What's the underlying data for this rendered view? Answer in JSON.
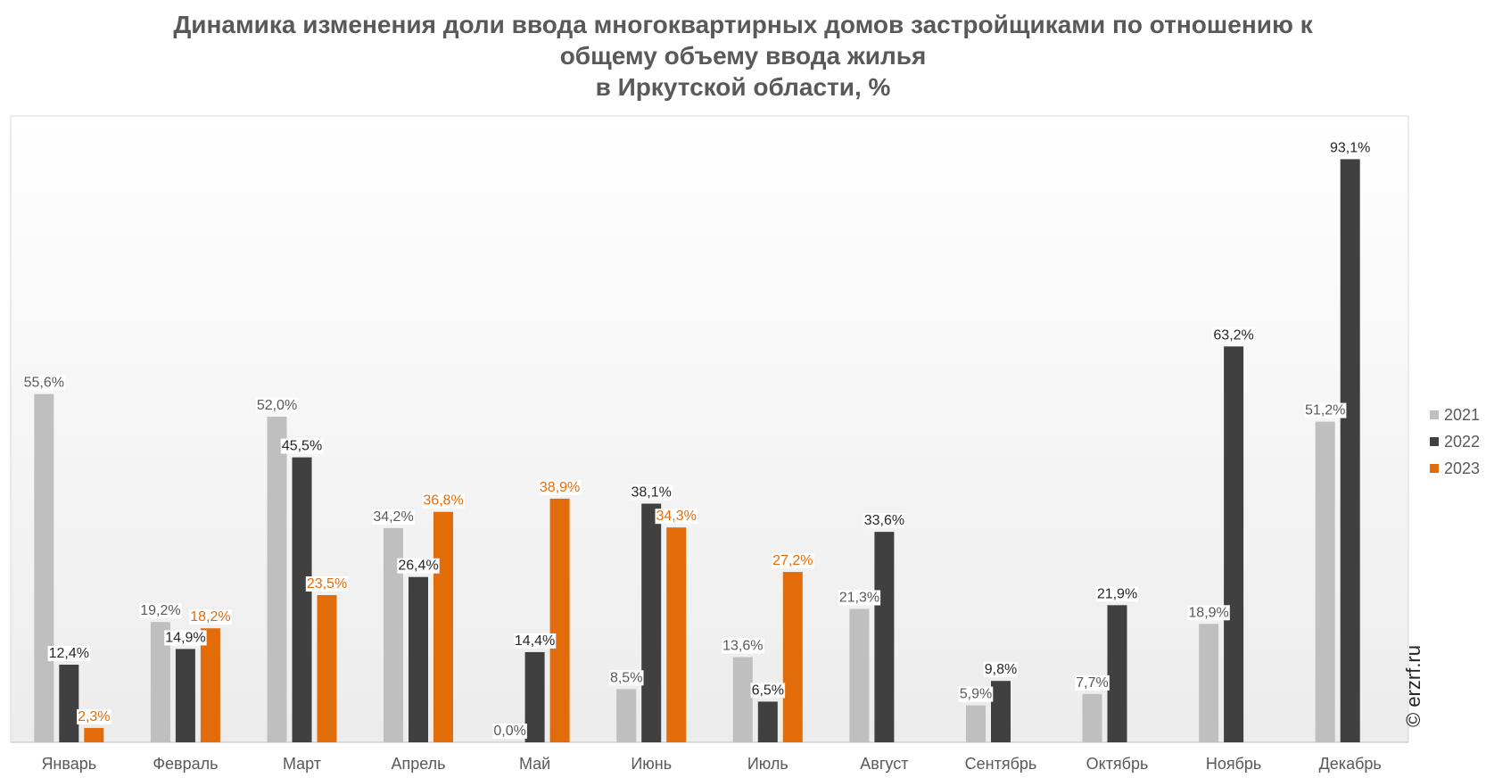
{
  "title_lines": [
    "Динамика изменения доли ввода многоквартирных домов застройщиками по отношению к",
    "общему объему ввода жилья",
    "в Иркутской области, %"
  ],
  "watermark": "© erzrf.ru",
  "chart_data": {
    "type": "bar",
    "title": "Динамика изменения доли ввода многоквартирных домов застройщиками по отношению к общему объему ввода жилья в Иркутской области, %",
    "xlabel": "",
    "ylabel": "",
    "ylim": [
      0,
      100
    ],
    "grid": false,
    "legend_position": "right",
    "categories": [
      "Январь",
      "Февраль",
      "Март",
      "Апрель",
      "Май",
      "Июнь",
      "Июль",
      "Август",
      "Сентябрь",
      "Октябрь",
      "Ноябрь",
      "Декабрь"
    ],
    "series": [
      {
        "name": "2021",
        "color": "#bfbfbf",
        "label_color": "#595959",
        "values": [
          55.6,
          19.2,
          52.0,
          34.2,
          0.0,
          8.5,
          13.6,
          21.3,
          5.9,
          7.7,
          18.9,
          51.2
        ],
        "labels": [
          "55,6%",
          "19,2%",
          "52,0%",
          "34,2%",
          "0,0%",
          "8,5%",
          "13,6%",
          "21,3%",
          "5,9%",
          "7,7%",
          "18,9%",
          "51,2%"
        ]
      },
      {
        "name": "2022",
        "color": "#404040",
        "label_color": "#262626",
        "values": [
          12.4,
          14.9,
          45.5,
          26.4,
          14.4,
          38.1,
          6.5,
          33.6,
          9.8,
          21.9,
          63.2,
          93.1
        ],
        "labels": [
          "12,4%",
          "14,9%",
          "45,5%",
          "26,4%",
          "14,4%",
          "38,1%",
          "6,5%",
          "33,6%",
          "9,8%",
          "21,9%",
          "63,2%",
          "93,1%"
        ]
      },
      {
        "name": "2023",
        "color": "#e36c0a",
        "label_color": "#e36c0a",
        "values": [
          2.3,
          18.2,
          23.5,
          36.8,
          38.9,
          34.3,
          27.2,
          null,
          null,
          null,
          null,
          null
        ],
        "labels": [
          "2,3%",
          "18,2%",
          "23,5%",
          "36,8%",
          "38,9%",
          "34,3%",
          "27,2%",
          null,
          null,
          null,
          null,
          null
        ]
      }
    ]
  }
}
